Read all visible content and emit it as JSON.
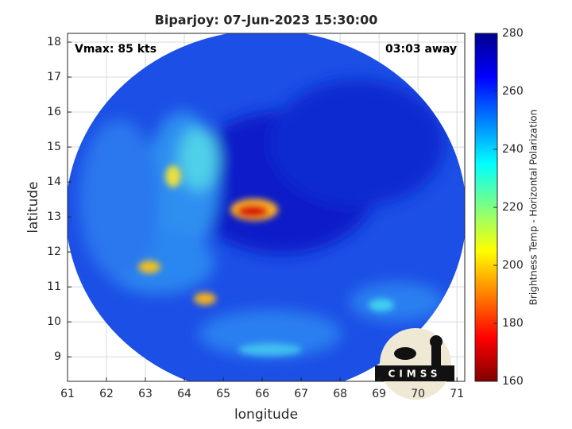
{
  "chart_data": {
    "type": "image",
    "title": "Biparjoy: 07-Jun-2023 15:30:00",
    "annotations": [
      "Vmax: 85 kts",
      "03:03 away"
    ],
    "x_label": "longitude",
    "y_label": "latitude",
    "xlim": [
      61,
      71.2
    ],
    "ylim": [
      8.3,
      18.25
    ],
    "xticks": [
      61,
      62,
      63,
      64,
      65,
      66,
      67,
      68,
      69,
      70,
      71
    ],
    "yticks": [
      9,
      10,
      11,
      12,
      13,
      14,
      15,
      16,
      17,
      18
    ],
    "grid": true,
    "colorbar": {
      "label": "Brightness Temp - Horizontal Polarization",
      "lim": [
        160,
        280
      ],
      "ticks": [
        160,
        180,
        200,
        220,
        240,
        260,
        280
      ],
      "colormap": [
        "#800000",
        "#ff0000",
        "#ff8000",
        "#ffff00",
        "#80ff80",
        "#00ffff",
        "#0080ff",
        "#0000ff",
        "#00008f"
      ]
    },
    "logo": "CIMSS"
  }
}
